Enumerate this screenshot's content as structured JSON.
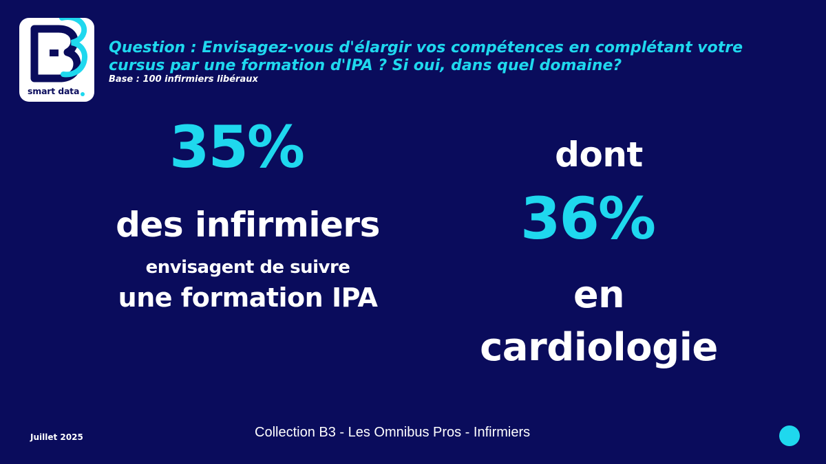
{
  "logo": {
    "mark": "B3",
    "text": "smart data"
  },
  "question": {
    "text": "Question : Envisagez-vous d'élargir vos compétences en complétant votre cursus par une formation d'IPA ? Si oui, dans quel domaine?",
    "base": "Base : 100 infirmiers libéraux"
  },
  "left": {
    "number": "35%",
    "line1": "des infirmiers",
    "line2": "envisagent de suivre",
    "line3": "une formation IPA"
  },
  "right": {
    "pre": "dont",
    "number": "36%",
    "line1": "en",
    "line2": "cardiologie"
  },
  "footer": {
    "date": "Juillet 2025",
    "title": "Collection  B3 - Les Omnibus Pros - Infirmiers"
  },
  "colors": {
    "background": "#0a0c5c",
    "accent": "#1fd8ee",
    "text": "#ffffff"
  }
}
